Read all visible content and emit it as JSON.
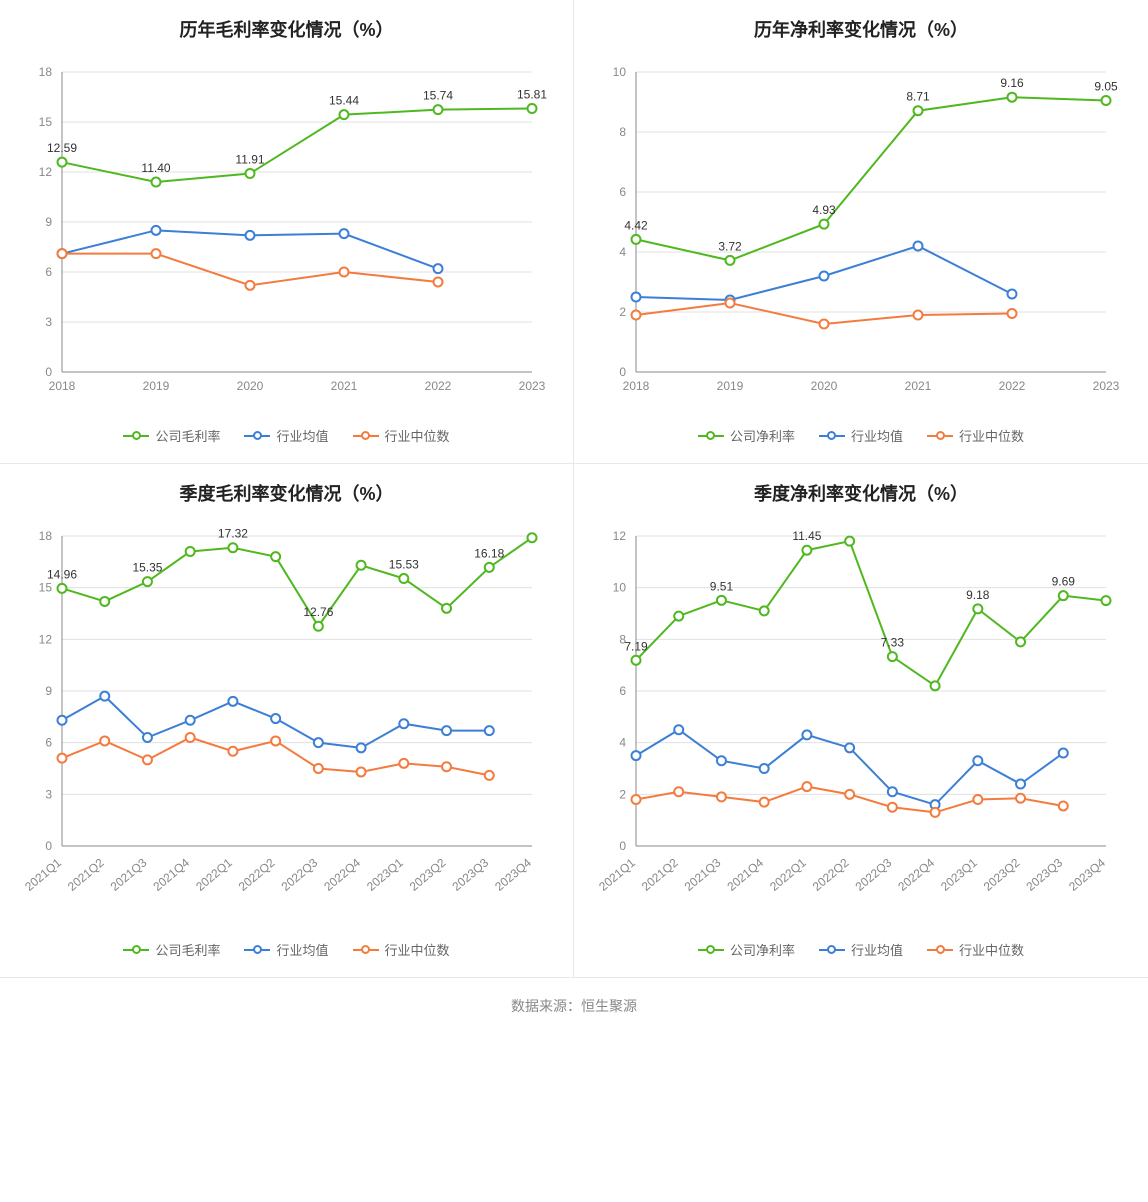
{
  "source_label": "数据来源：恒生聚源",
  "colors": {
    "company": "#4fb81f",
    "industry_avg": "#3b7fd6",
    "industry_median": "#f47b3e",
    "grid": "#e0e0e0",
    "axis": "#888888",
    "text": "#333333",
    "title": "#222222",
    "background": "#ffffff"
  },
  "charts": [
    {
      "id": "annual_gross",
      "title": "历年毛利率变化情况（%）",
      "type": "line",
      "categories": [
        "2018",
        "2019",
        "2020",
        "2021",
        "2022",
        "2023"
      ],
      "ylim": [
        0,
        18
      ],
      "ytick_step": 3,
      "rotate_x": false,
      "series": [
        {
          "key": "company",
          "label": "公司毛利率",
          "color": "#4fb81f",
          "values": [
            12.59,
            11.4,
            11.91,
            15.44,
            15.74,
            15.81
          ],
          "show_labels": [
            12.59,
            11.4,
            11.91,
            15.44,
            15.74,
            15.81
          ]
        },
        {
          "key": "industry_avg",
          "label": "行业均值",
          "color": "#3b7fd6",
          "values": [
            7.1,
            8.5,
            8.2,
            8.3,
            6.2,
            null
          ],
          "show_labels": []
        },
        {
          "key": "industry_median",
          "label": "行业中位数",
          "color": "#f47b3e",
          "values": [
            7.1,
            7.1,
            5.2,
            6.0,
            5.4,
            null
          ],
          "show_labels": []
        }
      ]
    },
    {
      "id": "annual_net",
      "title": "历年净利率变化情况（%）",
      "type": "line",
      "categories": [
        "2018",
        "2019",
        "2020",
        "2021",
        "2022",
        "2023"
      ],
      "ylim": [
        0,
        10
      ],
      "ytick_step": 2,
      "rotate_x": false,
      "series": [
        {
          "key": "company",
          "label": "公司净利率",
          "color": "#4fb81f",
          "values": [
            4.42,
            3.72,
            4.93,
            8.71,
            9.16,
            9.05
          ],
          "show_labels": [
            4.42,
            3.72,
            4.93,
            8.71,
            9.16,
            9.05
          ]
        },
        {
          "key": "industry_avg",
          "label": "行业均值",
          "color": "#3b7fd6",
          "values": [
            2.5,
            2.4,
            3.2,
            4.2,
            2.6,
            null
          ],
          "show_labels": []
        },
        {
          "key": "industry_median",
          "label": "行业中位数",
          "color": "#f47b3e",
          "values": [
            1.9,
            2.3,
            1.6,
            1.9,
            1.95,
            null
          ],
          "show_labels": []
        }
      ]
    },
    {
      "id": "quarterly_gross",
      "title": "季度毛利率变化情况（%）",
      "type": "line",
      "categories": [
        "2021Q1",
        "2021Q2",
        "2021Q3",
        "2021Q4",
        "2022Q1",
        "2022Q2",
        "2022Q3",
        "2022Q4",
        "2023Q1",
        "2023Q2",
        "2023Q3",
        "2023Q4"
      ],
      "ylim": [
        0,
        18
      ],
      "ytick_step": 3,
      "rotate_x": true,
      "series": [
        {
          "key": "company",
          "label": "公司毛利率",
          "color": "#4fb81f",
          "values": [
            14.96,
            14.2,
            15.35,
            17.1,
            17.32,
            16.8,
            12.76,
            16.3,
            15.53,
            13.8,
            16.18,
            17.9
          ],
          "show_labels": [
            14.96,
            null,
            15.35,
            null,
            17.32,
            null,
            12.76,
            null,
            15.53,
            null,
            16.18,
            null
          ]
        },
        {
          "key": "industry_avg",
          "label": "行业均值",
          "color": "#3b7fd6",
          "values": [
            7.3,
            8.7,
            6.3,
            7.3,
            8.4,
            7.4,
            6.0,
            5.7,
            7.1,
            6.7,
            6.7,
            null
          ],
          "show_labels": []
        },
        {
          "key": "industry_median",
          "label": "行业中位数",
          "color": "#f47b3e",
          "values": [
            5.1,
            6.1,
            5.0,
            6.3,
            5.5,
            6.1,
            4.5,
            4.3,
            4.8,
            4.6,
            4.1,
            null
          ],
          "show_labels": []
        }
      ]
    },
    {
      "id": "quarterly_net",
      "title": "季度净利率变化情况（%）",
      "type": "line",
      "categories": [
        "2021Q1",
        "2021Q2",
        "2021Q3",
        "2021Q4",
        "2022Q1",
        "2022Q2",
        "2022Q3",
        "2022Q4",
        "2023Q1",
        "2023Q2",
        "2023Q3",
        "2023Q4"
      ],
      "ylim": [
        0,
        12
      ],
      "ytick_step": 2,
      "rotate_x": true,
      "series": [
        {
          "key": "company",
          "label": "公司净利率",
          "color": "#4fb81f",
          "values": [
            7.19,
            8.9,
            9.51,
            9.1,
            11.45,
            11.8,
            7.33,
            6.2,
            9.18,
            7.9,
            9.69,
            9.5
          ],
          "show_labels": [
            7.19,
            null,
            9.51,
            null,
            11.45,
            null,
            7.33,
            null,
            9.18,
            null,
            9.69,
            null
          ]
        },
        {
          "key": "industry_avg",
          "label": "行业均值",
          "color": "#3b7fd6",
          "values": [
            3.5,
            4.5,
            3.3,
            3.0,
            4.3,
            3.8,
            2.1,
            1.6,
            3.3,
            2.4,
            3.6,
            null
          ],
          "show_labels": []
        },
        {
          "key": "industry_median",
          "label": "行业中位数",
          "color": "#f47b3e",
          "values": [
            1.8,
            2.1,
            1.9,
            1.7,
            2.3,
            2.0,
            1.5,
            1.3,
            1.8,
            1.85,
            1.55,
            null
          ],
          "show_labels": []
        }
      ]
    }
  ]
}
